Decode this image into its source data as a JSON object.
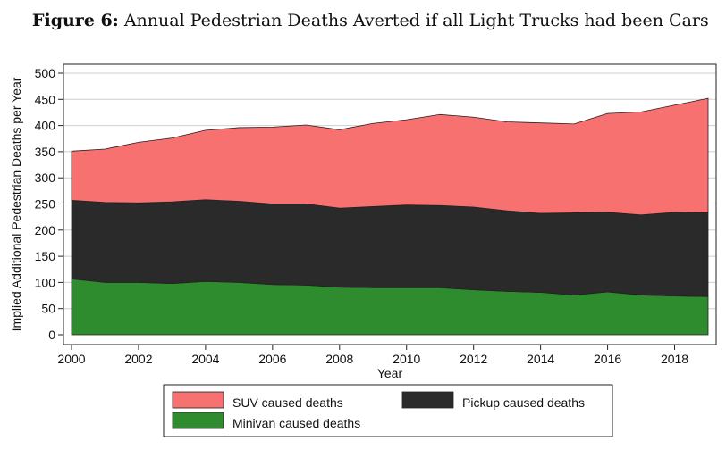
{
  "figure": {
    "label": "Figure 6:",
    "title": "Annual Pedestrian Deaths Averted if all Light Trucks had been Cars"
  },
  "chart_data": {
    "type": "area",
    "stacked": true,
    "xlabel": "Year",
    "ylabel": "Implied Additional Pedestrian Deaths per Year",
    "xlim": [
      2000,
      2019
    ],
    "ylim": [
      0,
      500
    ],
    "x_ticks": [
      2000,
      2002,
      2004,
      2006,
      2008,
      2010,
      2012,
      2014,
      2016,
      2018
    ],
    "y_ticks": [
      0,
      50,
      100,
      150,
      200,
      250,
      300,
      350,
      400,
      450,
      500
    ],
    "grid": true,
    "legend_position": "bottom",
    "x": [
      2000,
      2001,
      2002,
      2003,
      2004,
      2005,
      2006,
      2007,
      2008,
      2009,
      2010,
      2011,
      2012,
      2013,
      2014,
      2015,
      2016,
      2017,
      2018,
      2019
    ],
    "series": [
      {
        "name": "Minivan caused deaths",
        "color": "#2e8b2e",
        "values": [
          107,
          100,
          100,
          98,
          102,
          100,
          96,
          95,
          91,
          90,
          90,
          90,
          86,
          83,
          81,
          76,
          82,
          76,
          74,
          73
        ]
      },
      {
        "name": "Pickup caused deaths",
        "color": "#2a2a2a",
        "values": [
          150,
          153,
          152,
          156,
          156,
          155,
          154,
          155,
          151,
          155,
          158,
          157,
          158,
          154,
          151,
          157,
          152,
          153,
          160,
          160
        ]
      },
      {
        "name": "SUV caused deaths",
        "color": "#f87171",
        "values": [
          94,
          102,
          116,
          122,
          133,
          141,
          147,
          151,
          150,
          159,
          163,
          174,
          172,
          170,
          173,
          170,
          189,
          197,
          205,
          219
        ]
      }
    ],
    "legend_order": [
      "SUV caused deaths",
      "Pickup caused deaths",
      "Minivan caused deaths"
    ]
  }
}
